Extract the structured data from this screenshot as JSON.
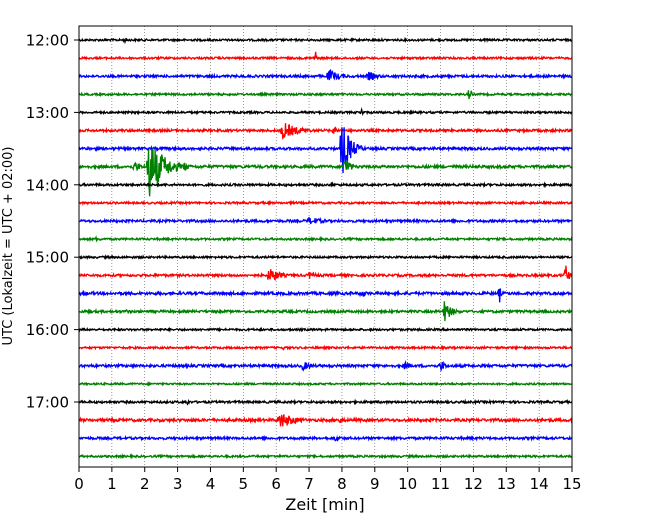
{
  "chart_data": {
    "type": "line",
    "title": "",
    "xlabel": "Zeit  [min]",
    "ylabel": "UTC (Lokalzeit = UTC + 02:00)",
    "xlim": [
      0,
      15
    ],
    "x_ticks": [
      "0",
      "1",
      "2",
      "3",
      "4",
      "5",
      "6",
      "7",
      "8",
      "9",
      "10",
      "11",
      "12",
      "13",
      "14",
      "15"
    ],
    "y_ticks": [
      {
        "label": "12:00",
        "row": 0
      },
      {
        "label": "13:00",
        "row": 4
      },
      {
        "label": "14:00",
        "row": 8
      },
      {
        "label": "15:00",
        "row": 12
      },
      {
        "label": "16:00",
        "row": 16
      },
      {
        "label": "17:00",
        "row": 20
      }
    ],
    "grid": "vertical dotted lines at each minute",
    "row_interval_minutes": 15,
    "start_time_utc": "12:00",
    "trace_colors": [
      "#000000",
      "#ff0000",
      "#0000ff",
      "#008000"
    ],
    "series": [
      {
        "start": "12:00",
        "color": "black",
        "noise": 1.0,
        "events": [
          {
            "t": 1.4,
            "amp": 2.5,
            "dur": 0.4
          }
        ]
      },
      {
        "start": "12:15",
        "color": "red",
        "noise": 1.0,
        "events": [
          {
            "t": 7.2,
            "amp": 8,
            "dur": 0.1
          }
        ]
      },
      {
        "start": "12:30",
        "color": "blue",
        "noise": 1.2,
        "events": [
          {
            "t": 7.6,
            "amp": 7,
            "dur": 1.0
          },
          {
            "t": 8.8,
            "amp": 5,
            "dur": 0.9
          }
        ]
      },
      {
        "start": "12:45",
        "color": "green",
        "noise": 1.0,
        "events": [
          {
            "t": 11.9,
            "amp": 10,
            "dur": 0.1
          }
        ]
      },
      {
        "start": "13:00",
        "color": "black",
        "noise": 1.0,
        "events": [
          {
            "t": 8.6,
            "amp": 6,
            "dur": 0.1
          }
        ]
      },
      {
        "start": "13:15",
        "color": "red",
        "noise": 1.2,
        "events": [
          {
            "t": 6.2,
            "amp": 9,
            "dur": 1.3
          },
          {
            "t": 7.7,
            "amp": 4,
            "dur": 0.8
          }
        ]
      },
      {
        "start": "13:30",
        "color": "blue",
        "noise": 1.3,
        "events": [
          {
            "t": 8.0,
            "amp": 30,
            "dur": 0.7
          },
          {
            "t": 11.9,
            "amp": 4,
            "dur": 0.2
          }
        ]
      },
      {
        "start": "13:45",
        "color": "green",
        "noise": 1.4,
        "events": [
          {
            "t": 1.7,
            "amp": 6,
            "dur": 0.5
          },
          {
            "t": 2.1,
            "amp": 34,
            "dur": 1.2
          },
          {
            "t": 3.2,
            "amp": 5,
            "dur": 0.5
          },
          {
            "t": 8.1,
            "amp": 12,
            "dur": 0.4
          }
        ]
      },
      {
        "start": "14:00",
        "color": "black",
        "noise": 1.1,
        "events": [
          {
            "t": 7.7,
            "amp": 5,
            "dur": 0.1
          }
        ]
      },
      {
        "start": "14:15",
        "color": "red",
        "noise": 1.0,
        "events": []
      },
      {
        "start": "14:30",
        "color": "blue",
        "noise": 1.2,
        "events": [
          {
            "t": 7.0,
            "amp": 4,
            "dur": 1.5
          }
        ]
      },
      {
        "start": "14:45",
        "color": "green",
        "noise": 1.0,
        "events": [
          {
            "t": 0.5,
            "amp": 2,
            "dur": 1.0
          }
        ]
      },
      {
        "start": "15:00",
        "color": "black",
        "noise": 1.0,
        "events": []
      },
      {
        "start": "15:15",
        "color": "red",
        "noise": 1.2,
        "events": [
          {
            "t": 5.8,
            "amp": 9,
            "dur": 0.8
          },
          {
            "t": 7.0,
            "amp": 4,
            "dur": 0.8
          },
          {
            "t": 14.8,
            "amp": 12,
            "dur": 0.3
          }
        ]
      },
      {
        "start": "15:30",
        "color": "blue",
        "noise": 1.4,
        "events": [
          {
            "t": 0.1,
            "amp": 4,
            "dur": 0.3
          },
          {
            "t": 8.6,
            "amp": 4,
            "dur": 0.5
          },
          {
            "t": 12.8,
            "amp": 9,
            "dur": 0.1
          }
        ]
      },
      {
        "start": "15:45",
        "color": "green",
        "noise": 1.2,
        "events": [
          {
            "t": 1.5,
            "amp": 4,
            "dur": 0.1
          },
          {
            "t": 11.1,
            "amp": 12,
            "dur": 0.6
          }
        ]
      },
      {
        "start": "16:00",
        "color": "black",
        "noise": 1.0,
        "events": []
      },
      {
        "start": "16:15",
        "color": "red",
        "noise": 1.0,
        "events": [
          {
            "t": 6.2,
            "amp": 2,
            "dur": 0.8
          }
        ]
      },
      {
        "start": "16:30",
        "color": "blue",
        "noise": 1.3,
        "events": [
          {
            "t": 6.8,
            "amp": 5,
            "dur": 0.8
          },
          {
            "t": 9.9,
            "amp": 4,
            "dur": 0.8
          },
          {
            "t": 11.0,
            "amp": 6,
            "dur": 0.5
          }
        ]
      },
      {
        "start": "16:45",
        "color": "green",
        "noise": 0.9,
        "events": []
      },
      {
        "start": "17:00",
        "color": "black",
        "noise": 1.1,
        "events": [
          {
            "t": 3.3,
            "amp": 4,
            "dur": 0.1
          }
        ]
      },
      {
        "start": "17:15",
        "color": "red",
        "noise": 1.4,
        "events": [
          {
            "t": 6.1,
            "amp": 9,
            "dur": 1.3
          },
          {
            "t": 7.9,
            "amp": 4,
            "dur": 0.6
          }
        ]
      },
      {
        "start": "17:30",
        "color": "blue",
        "noise": 1.2,
        "events": [
          {
            "t": 7.8,
            "amp": 4,
            "dur": 0.6
          }
        ]
      },
      {
        "start": "17:45",
        "color": "green",
        "noise": 1.0,
        "events": []
      }
    ]
  }
}
